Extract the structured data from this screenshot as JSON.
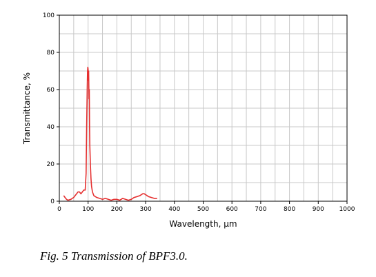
{
  "chart_data": {
    "type": "line",
    "xlabel": "Wavelength, μm",
    "ylabel": "Transmittance, %",
    "xlim": [
      0,
      1000
    ],
    "ylim": [
      0,
      100
    ],
    "x_ticks": [
      0,
      100,
      200,
      300,
      400,
      500,
      600,
      700,
      800,
      900,
      1000
    ],
    "y_ticks": [
      0,
      20,
      40,
      60,
      80,
      100
    ],
    "grid": true,
    "series": [
      {
        "color": "#e53030",
        "x": [
          15,
          20,
          25,
          30,
          40,
          50,
          55,
          60,
          65,
          70,
          75,
          80,
          85,
          90,
          93,
          95,
          97,
          98,
          99,
          100,
          101,
          102,
          103,
          104,
          105,
          106,
          107,
          108,
          110,
          112,
          115,
          120,
          130,
          140,
          150,
          160,
          170,
          180,
          190,
          200,
          210,
          220,
          230,
          240,
          250,
          260,
          270,
          280,
          290,
          295,
          300,
          310,
          320,
          330,
          340
        ],
        "y": [
          3,
          2,
          1,
          0.5,
          1,
          2,
          3,
          4,
          5,
          5,
          4,
          5,
          6,
          6,
          15,
          40,
          60,
          70,
          72,
          71,
          65,
          70,
          55,
          60,
          40,
          30,
          25,
          20,
          12,
          8,
          5,
          3,
          2,
          1.5,
          1,
          1.5,
          1,
          0.5,
          1,
          1,
          0.5,
          1.5,
          1,
          0.5,
          1,
          2,
          2.5,
          3,
          4,
          4,
          3.5,
          2.5,
          2,
          1.5,
          1.5
        ]
      }
    ]
  },
  "caption": "Fig. 5 Transmission of  BPF3.0."
}
